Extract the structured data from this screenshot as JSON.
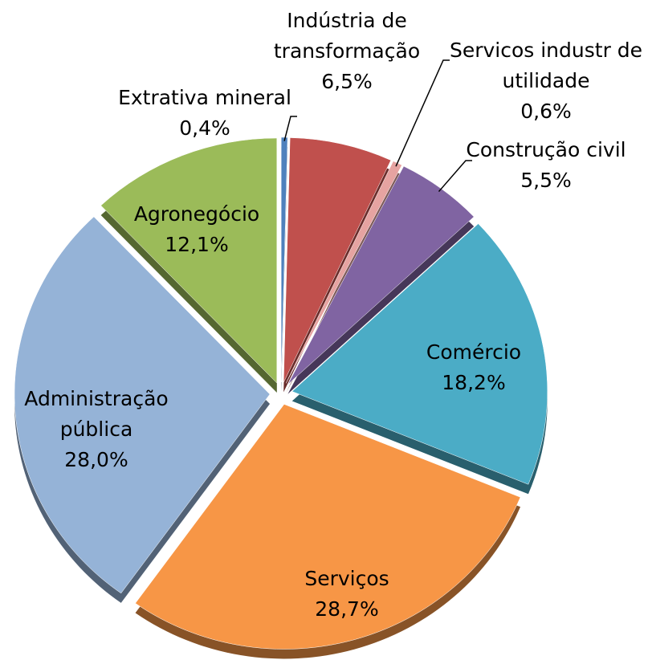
{
  "chart_data": {
    "type": "pie",
    "categories": [
      "Extrativa mineral",
      "Indústria de transformação",
      "Servicos industr de utilidade",
      "Construção civil",
      "Comércio",
      "Serviços",
      "Administração pública",
      "Agronegócio"
    ],
    "values": [
      0.4,
      6.5,
      0.6,
      5.5,
      18.2,
      28.7,
      28.0,
      12.1
    ],
    "value_labels": [
      "0,4%",
      "6,5%",
      "0,6%",
      "5,5%",
      "18,2%",
      "28,7%",
      "28,0%",
      "12,1%"
    ],
    "colors": [
      "#4f81bd",
      "#c0504d",
      "#e6a3a1",
      "#8064a2",
      "#4bacc6",
      "#f79646",
      "#95b3d7",
      "#9bbb59"
    ]
  }
}
